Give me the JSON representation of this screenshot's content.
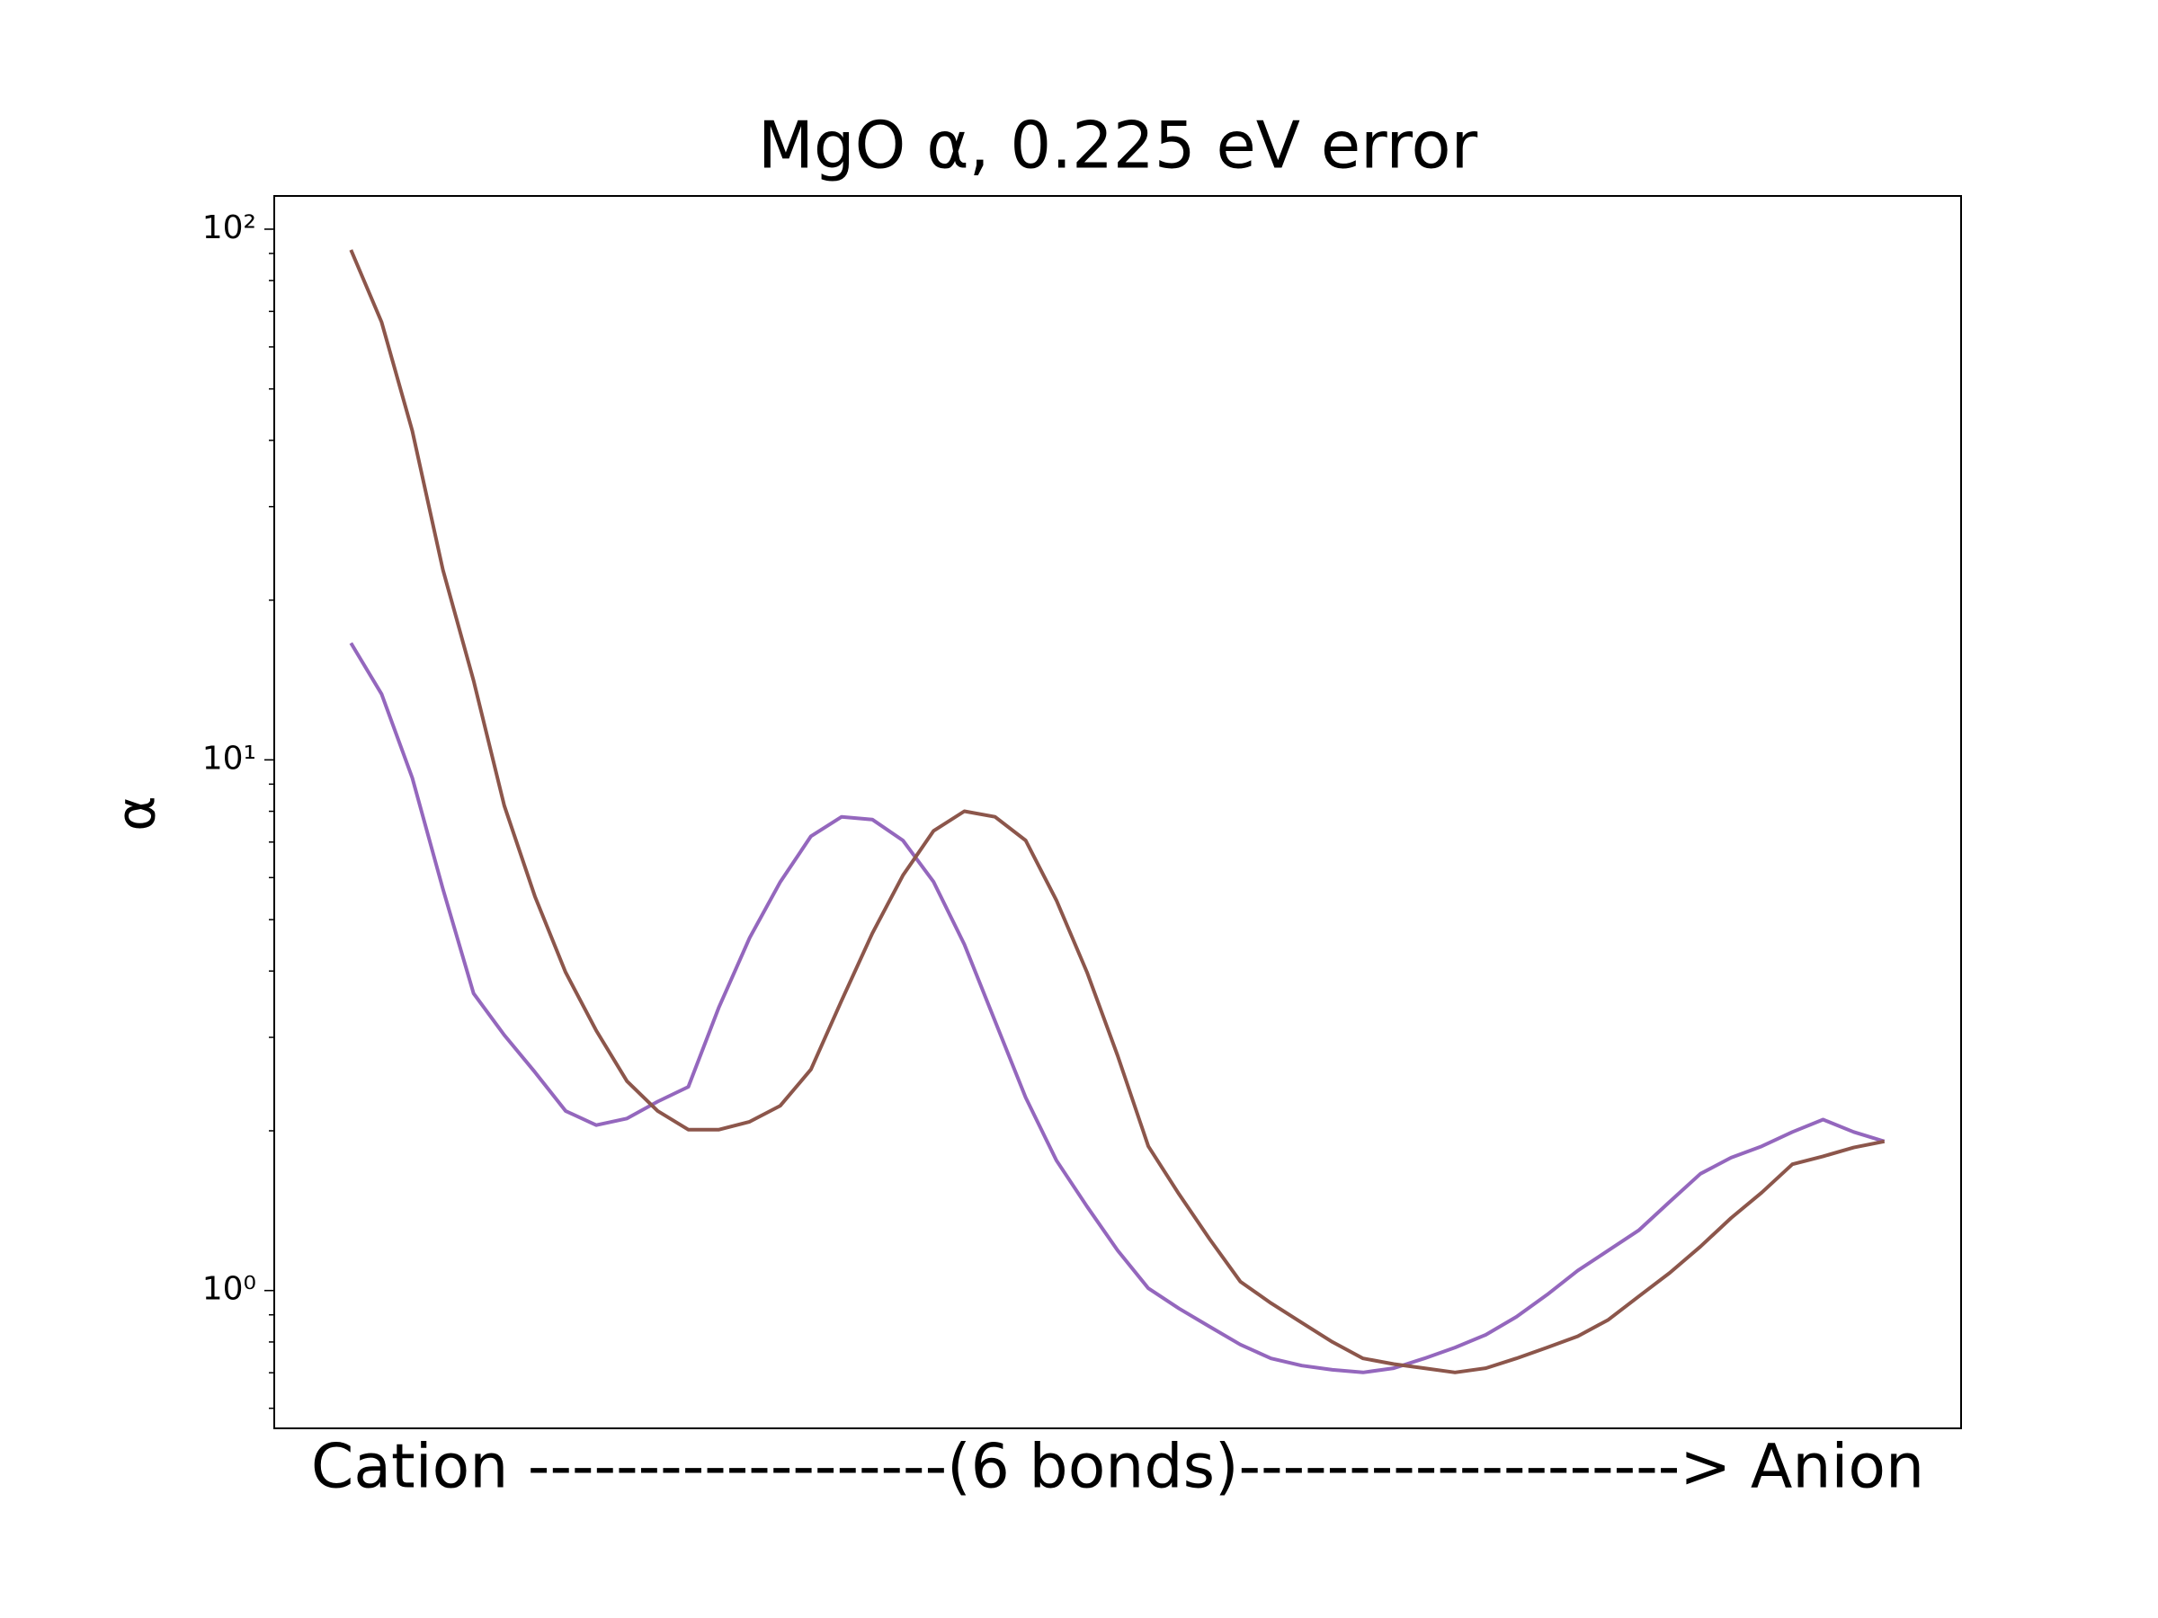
{
  "chart_data": {
    "type": "line",
    "title": "MgO α, 0.225 eV error",
    "xlabel": "Cation -------------------(6 bonds)--------------------> Anion",
    "ylabel": "α",
    "yscale": "log",
    "x": [
      0,
      2,
      4,
      6,
      8,
      10,
      12,
      14,
      16,
      18,
      20,
      22,
      24,
      26,
      28,
      30,
      32,
      34,
      36,
      38,
      40,
      42,
      44,
      46,
      48,
      50,
      52,
      54,
      56,
      58,
      60,
      62,
      64,
      66,
      68,
      70,
      72,
      74,
      76,
      78,
      80,
      82,
      84,
      86,
      88,
      90,
      92,
      94,
      96,
      98,
      100
    ],
    "xlim": [
      -5,
      105
    ],
    "ylim": [
      0.55,
      115.5
    ],
    "yticks": [
      {
        "value": 1,
        "label": "10⁰"
      },
      {
        "value": 10,
        "label": "10¹"
      },
      {
        "value": 100,
        "label": "10²"
      }
    ],
    "yminor_ticks": [
      0.6,
      0.7,
      0.8,
      0.9,
      2,
      3,
      4,
      5,
      6,
      7,
      8,
      9,
      20,
      30,
      40,
      50,
      60,
      70,
      80,
      90
    ],
    "series": [
      {
        "color": "#9467bd",
        "values": [
          16.6,
          13.3,
          9.25,
          5.71,
          3.63,
          3.03,
          2.58,
          2.18,
          2.05,
          2.11,
          2.27,
          2.42,
          3.42,
          4.62,
          5.89,
          7.18,
          7.81,
          7.72,
          7.05,
          5.89,
          4.49,
          3.22,
          2.31,
          1.76,
          1.44,
          1.19,
          1.01,
          0.925,
          0.855,
          0.791,
          0.745,
          0.722,
          0.709,
          0.701,
          0.714,
          0.745,
          0.781,
          0.825,
          0.892,
          0.982,
          1.09,
          1.19,
          1.3,
          1.47,
          1.66,
          1.78,
          1.87,
          1.99,
          2.1,
          1.99,
          1.91
        ]
      },
      {
        "color": "#8c564b",
        "values": [
          91.4,
          66.8,
          41.7,
          22.8,
          14.1,
          8.2,
          5.53,
          3.98,
          3.09,
          2.48,
          2.18,
          2.01,
          2.01,
          2.08,
          2.23,
          2.61,
          3.52,
          4.71,
          6.06,
          7.35,
          8.0,
          7.81,
          7.05,
          5.44,
          3.98,
          2.77,
          1.87,
          1.52,
          1.25,
          1.04,
          0.947,
          0.87,
          0.8,
          0.745,
          0.727,
          0.714,
          0.701,
          0.714,
          0.745,
          0.781,
          0.82,
          0.881,
          0.976,
          1.08,
          1.21,
          1.37,
          1.53,
          1.73,
          1.79,
          1.86,
          1.91
        ]
      }
    ]
  }
}
